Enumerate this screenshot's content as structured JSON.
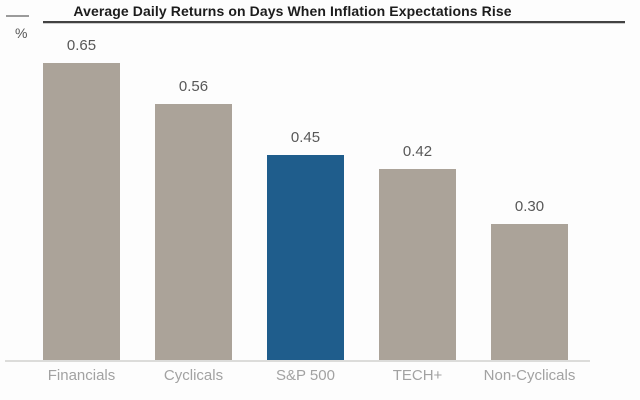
{
  "title": "Average Daily Returns on Days When Inflation Expectations Rise",
  "unit_label": "%",
  "chart_data": {
    "type": "bar",
    "title": "Average Daily Returns on Days When Inflation Expectations Rise",
    "categories": [
      "Financials",
      "Cyclicals",
      "S&P 500",
      "TECH+",
      "Non-Cyclicals"
    ],
    "values": [
      0.65,
      0.56,
      0.45,
      0.42,
      0.3
    ],
    "value_labels": [
      "0.65",
      "0.56",
      "0.45",
      "0.42",
      "0.30"
    ],
    "xlabel": "",
    "ylabel": "%",
    "ylim": [
      0,
      0.72
    ],
    "grid": false,
    "legend": false,
    "highlight_index": 2,
    "highlight_category": "S&P 500"
  },
  "colors": {
    "bar": "#aba399",
    "highlight": "#1f5d8c",
    "title": "#1c1c1c",
    "title_rule": "#424242",
    "unit_rule": "#9b9b9b",
    "value_label": "#585858",
    "category_label": "#a2a2a2",
    "baseline": "#dcdcda",
    "background": "#fdfdfd"
  }
}
